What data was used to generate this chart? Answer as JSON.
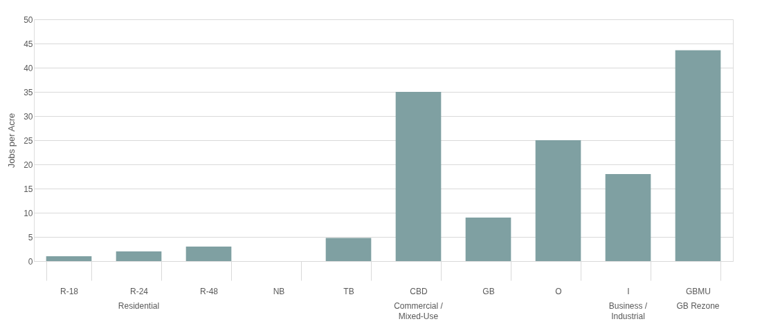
{
  "chart_data": {
    "type": "bar",
    "ylabel": "Jobs per Acre",
    "categories": [
      "R-18",
      "R-24",
      "R-48",
      "NB",
      "TB",
      "CBD",
      "GB",
      "O",
      "I",
      "GBMU"
    ],
    "values": [
      1,
      2,
      3,
      0,
      4.8,
      35,
      9,
      25,
      18,
      43.6
    ],
    "color": "#7fa0a2",
    "ylim": [
      0,
      50
    ],
    "yticks": [
      0,
      5,
      10,
      15,
      20,
      25,
      30,
      35,
      40,
      45,
      50
    ],
    "grid": "y",
    "annotations": [
      "Residential",
      "Commercial / Mixed-Use",
      "Business / Industrial",
      "GB Rezone"
    ]
  }
}
